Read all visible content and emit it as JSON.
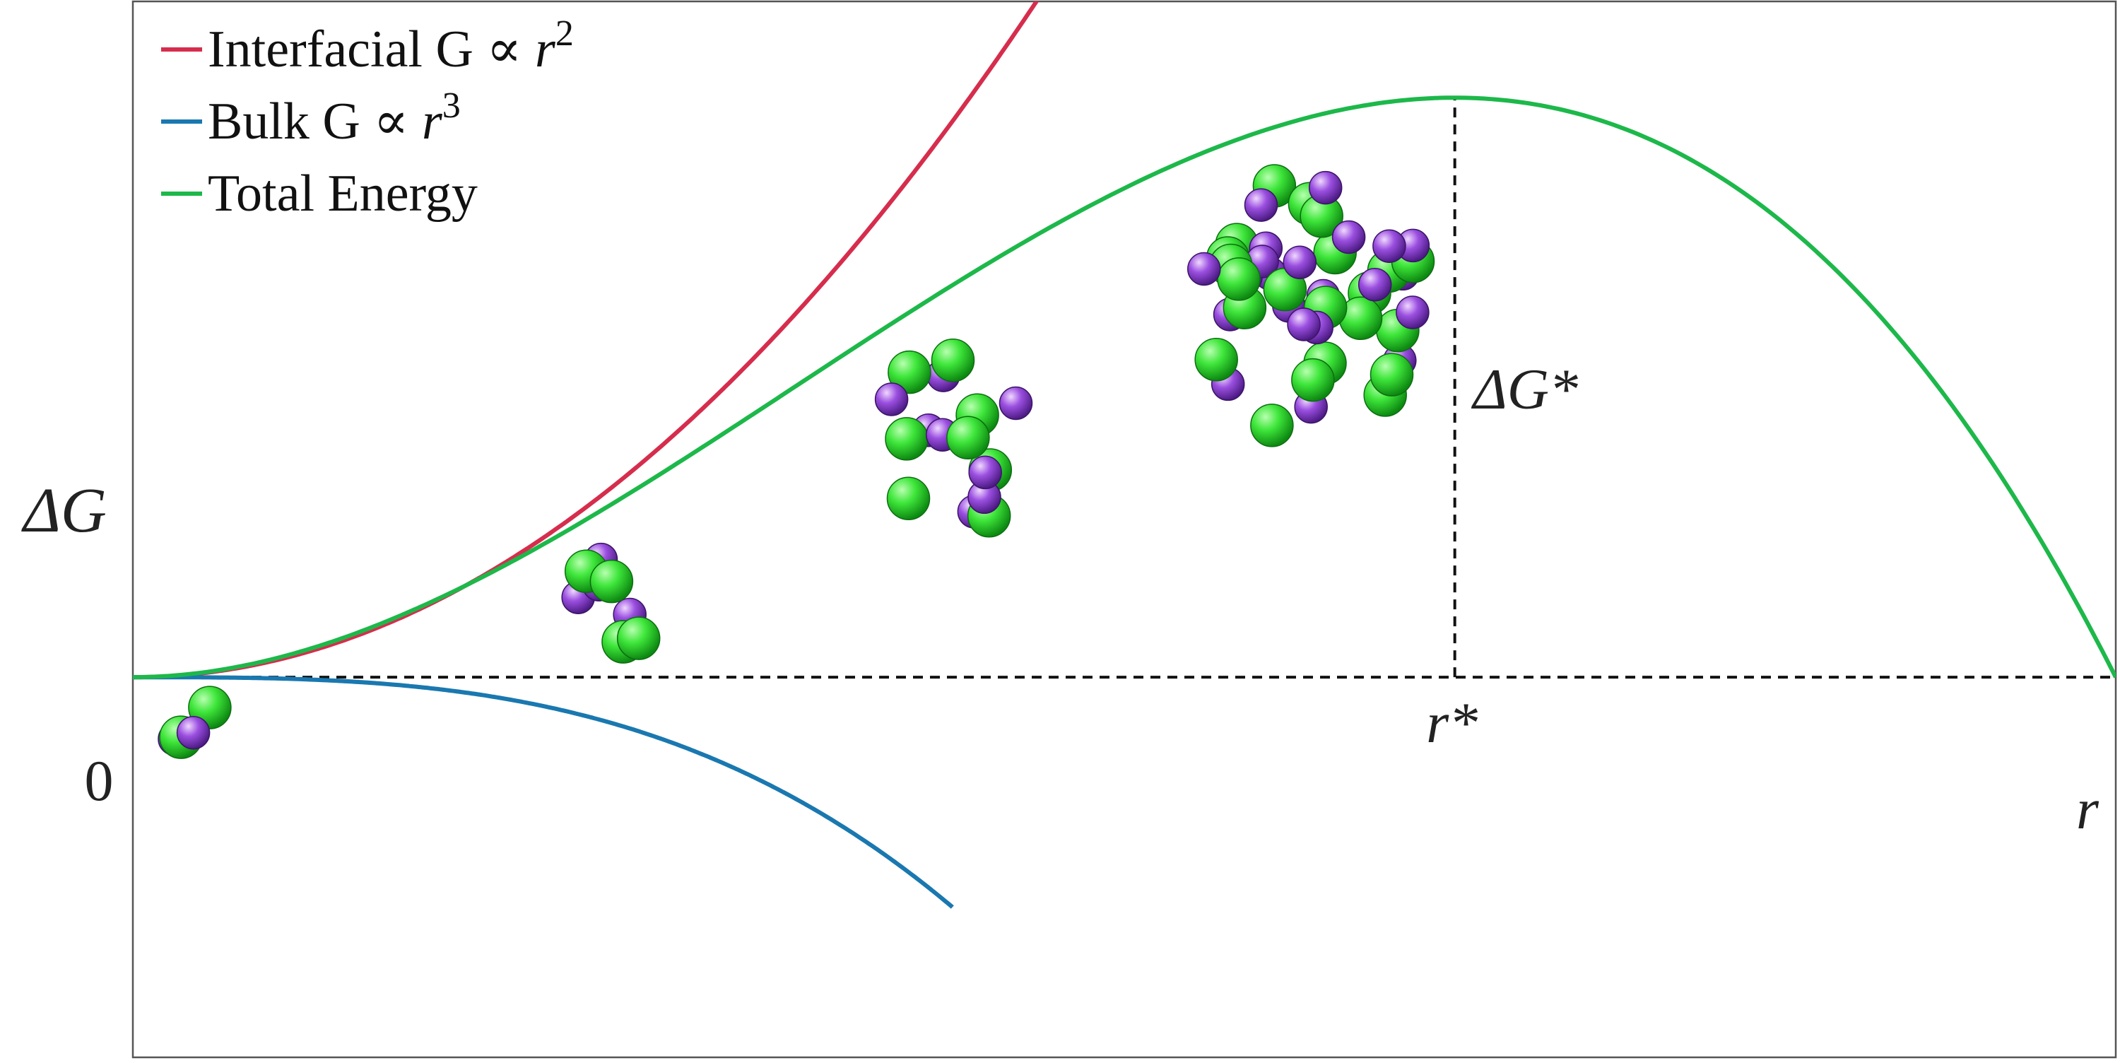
{
  "chart_data": {
    "type": "line",
    "title": "",
    "xlabel": "r",
    "ylabel": "ΔG",
    "xlim": [
      0,
      1.5
    ],
    "ylim": [
      -0.45,
      0.8
    ],
    "grid": false,
    "legend_position": "top-left",
    "y_zero_label": "0",
    "critical_radius_label": "r*",
    "barrier_label": "ΔG*",
    "critical_radius": 1.0,
    "barrier_height": 0.686,
    "series": [
      {
        "name": "Interfacial G ∝ r²",
        "legend_text": "Interfacial G ∝ ",
        "legend_sup": "2",
        "color": "#d62d4d",
        "x": [
          0,
          0.1,
          0.2,
          0.3,
          0.4,
          0.5,
          0.6,
          0.7
        ],
        "y": [
          0,
          0.0171,
          0.0685,
          0.1541,
          0.274,
          0.4281,
          0.6164,
          0.839
        ]
      },
      {
        "name": "Bulk G ∝ r³",
        "legend_text": "Bulk G ∝ ",
        "legend_sup": "3",
        "color": "#1a78b0",
        "x": [
          0,
          0.1,
          0.2,
          0.3,
          0.4,
          0.5,
          0.6,
          0.62
        ],
        "y": [
          0,
          -0.0011,
          -0.0091,
          -0.0308,
          -0.0731,
          -0.1427,
          -0.2466,
          -0.2722
        ]
      },
      {
        "name": "Total Energy",
        "legend_text": "Total Energy",
        "legend_sup": "",
        "color": "#1db84a",
        "x": [
          0,
          0.1,
          0.2,
          0.3,
          0.4,
          0.5,
          0.6,
          0.7,
          0.8,
          0.9,
          1.0,
          1.1,
          1.2,
          1.3,
          1.4,
          1.5
        ],
        "y": [
          0,
          0.0205,
          0.0796,
          0.1729,
          0.2963,
          0.4459,
          0.5997,
          0.5874,
          0.6459,
          0.6721,
          0.686,
          0.66,
          0.59,
          0.46,
          0.26,
          0
        ]
      }
    ],
    "nuclei": [
      {
        "name": "cluster-1",
        "x": 0.045,
        "y": -0.055,
        "n_cation": 2,
        "n_anion": 2,
        "spread": 0.018
      },
      {
        "name": "cluster-2",
        "x": 0.36,
        "y": 0.085,
        "n_cation": 5,
        "n_anion": 4,
        "spread": 0.035
      },
      {
        "name": "cluster-3",
        "x": 0.62,
        "y": 0.28,
        "n_cation": 8,
        "n_anion": 8,
        "spread": 0.06
      },
      {
        "name": "cluster-4",
        "x": 0.895,
        "y": 0.44,
        "n_cation": 22,
        "n_anion": 22,
        "spread": 0.09
      }
    ],
    "colors": {
      "cation": "#22cc22",
      "anion": "#8a3ccc",
      "axis": "#555555",
      "guide": "#111111"
    }
  }
}
